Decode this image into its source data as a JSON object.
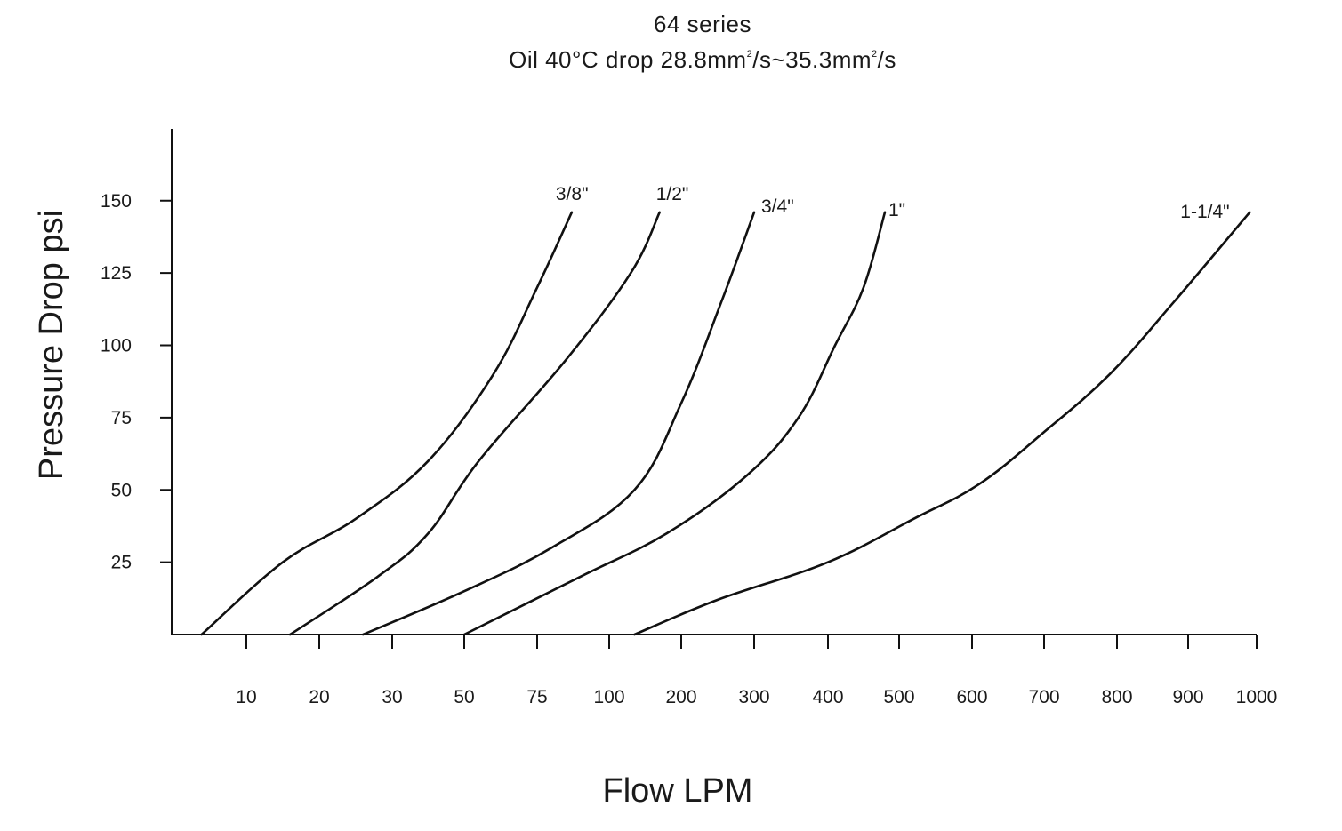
{
  "chart_data": {
    "type": "line",
    "title": "64 series",
    "subtitle": {
      "prefix": "Oil  40°C drop 28.8mm",
      "sup1": "2",
      "middle": "/s~35.3mm",
      "sup2": "2",
      "suffix": "/s"
    },
    "xlabel": "Flow LPM",
    "ylabel": "Pressure Drop psi",
    "x_tick_labels": [
      "10",
      "20",
      "30",
      "50",
      "75",
      "100",
      "200",
      "300",
      "400",
      "500",
      "600",
      "700",
      "800",
      "900",
      "1000"
    ],
    "y_ticks": [
      25,
      50,
      75,
      100,
      125,
      150
    ],
    "ylim": [
      0,
      175
    ],
    "grid": false,
    "series": [
      {
        "name": "3/8\"",
        "points": [
          [
            4,
            0
          ],
          [
            15,
            25
          ],
          [
            25,
            40
          ],
          [
            40,
            60
          ],
          [
            60,
            90
          ],
          [
            75,
            120
          ],
          [
            87,
            146
          ]
        ]
      },
      {
        "name": "1/2\"",
        "points": [
          [
            16,
            0
          ],
          [
            28,
            20
          ],
          [
            40,
            35
          ],
          [
            55,
            60
          ],
          [
            85,
            95
          ],
          [
            130,
            125
          ],
          [
            170,
            146
          ]
        ]
      },
      {
        "name": "3/4\"",
        "points": [
          [
            26,
            0
          ],
          [
            50,
            15
          ],
          [
            80,
            30
          ],
          [
            135,
            50
          ],
          [
            200,
            80
          ],
          [
            255,
            115
          ],
          [
            300,
            146
          ]
        ]
      },
      {
        "name": "1\"",
        "points": [
          [
            50,
            0
          ],
          [
            90,
            20
          ],
          [
            180,
            35
          ],
          [
            290,
            55
          ],
          [
            360,
            75
          ],
          [
            410,
            100
          ],
          [
            450,
            120
          ],
          [
            480,
            146
          ]
        ]
      },
      {
        "name": "1-1/4\"",
        "points": [
          [
            135,
            0
          ],
          [
            250,
            12
          ],
          [
            400,
            25
          ],
          [
            520,
            40
          ],
          [
            610,
            52
          ],
          [
            700,
            70
          ],
          [
            790,
            90
          ],
          [
            880,
            115
          ],
          [
            990,
            146
          ]
        ]
      }
    ]
  }
}
